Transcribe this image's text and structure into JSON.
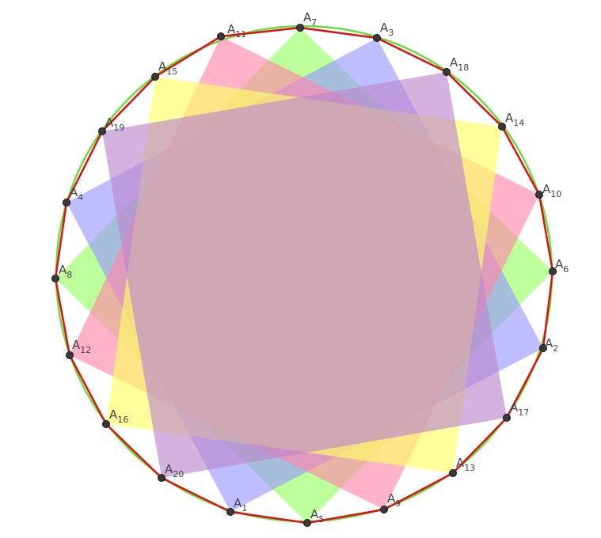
{
  "diagram": {
    "colors": {
      "circle": "#66dd44",
      "polygon_edge": "#dd1111",
      "point_fill": "#3a3a3a",
      "square_fills": [
        "#99ff66",
        "#9999ff",
        "#ff88aa",
        "#ffff66",
        "#bb88cc"
      ]
    },
    "points": [
      {
        "letter": "A",
        "index": "1"
      },
      {
        "letter": "A",
        "index": "2"
      },
      {
        "letter": "A",
        "index": "3"
      },
      {
        "letter": "A",
        "index": "4"
      },
      {
        "letter": "A",
        "index": "5"
      },
      {
        "letter": "A",
        "index": "6"
      },
      {
        "letter": "A",
        "index": "7"
      },
      {
        "letter": "A",
        "index": "8"
      },
      {
        "letter": "A",
        "index": "9"
      },
      {
        "letter": "A",
        "index": "10"
      },
      {
        "letter": "A",
        "index": "11"
      },
      {
        "letter": "A",
        "index": "12"
      },
      {
        "letter": "A",
        "index": "13"
      },
      {
        "letter": "A",
        "index": "14"
      },
      {
        "letter": "A",
        "index": "15"
      },
      {
        "letter": "A",
        "index": "16"
      },
      {
        "letter": "A",
        "index": "17"
      },
      {
        "letter": "A",
        "index": "18"
      },
      {
        "letter": "A",
        "index": "19"
      },
      {
        "letter": "A",
        "index": "20"
      }
    ],
    "squares": [
      {
        "vertices": [
          "5",
          "6",
          "7",
          "8"
        ],
        "color_index": 0
      },
      {
        "vertices": [
          "1",
          "2",
          "3",
          "4"
        ],
        "color_index": 1
      },
      {
        "vertices": [
          "9",
          "10",
          "11",
          "12"
        ],
        "color_index": 2
      },
      {
        "vertices": [
          "13",
          "14",
          "15",
          "16"
        ],
        "color_index": 3
      },
      {
        "vertices": [
          "17",
          "18",
          "19",
          "20"
        ],
        "color_index": 4
      }
    ]
  }
}
